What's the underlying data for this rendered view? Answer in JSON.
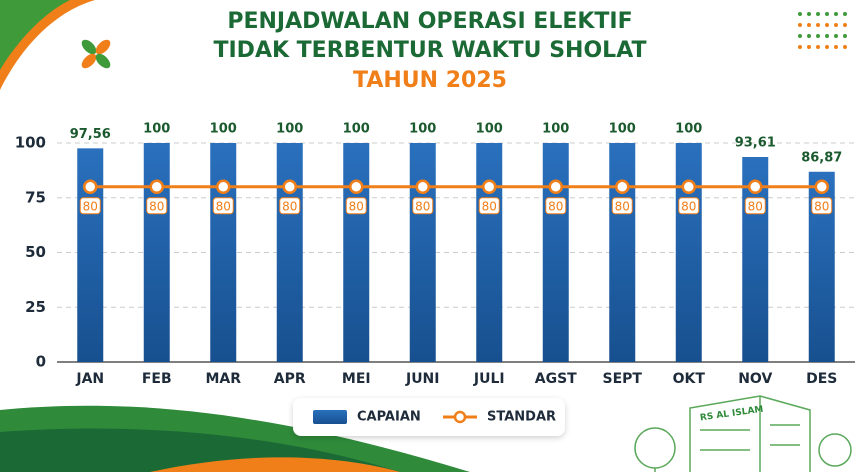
{
  "chart_data": {
    "type": "bar",
    "title": [
      "PENJADWALAN OPERASI ELEKTIF",
      "TIDAK TERBENTUR WAKTU SHOLAT"
    ],
    "subtitle": "TAHUN 2025",
    "categories": [
      "JAN",
      "FEB",
      "MAR",
      "APR",
      "MEI",
      "JUNI",
      "JULI",
      "AGST",
      "SEPT",
      "OKT",
      "NOV",
      "DES"
    ],
    "series": [
      {
        "name": "CAPAIAN",
        "type": "bar",
        "color": "#1d5ea8",
        "values": [
          97.56,
          100,
          100,
          100,
          100,
          100,
          100,
          100,
          100,
          100,
          93.61,
          86.87
        ],
        "value_labels": [
          "97,56",
          "100",
          "100",
          "100",
          "100",
          "100",
          "100",
          "100",
          "100",
          "100",
          "93,61",
          "86,87"
        ]
      },
      {
        "name": "STANDAR",
        "type": "line",
        "color": "#f07f1a",
        "values": [
          80,
          80,
          80,
          80,
          80,
          80,
          80,
          80,
          80,
          80,
          80,
          80
        ]
      }
    ],
    "ylim": [
      0,
      100
    ],
    "yticks": [
      0,
      25,
      50,
      75,
      100
    ],
    "grid": true,
    "legend": "bottom"
  },
  "decor": {
    "building_label": "RS AL ISLAM"
  }
}
